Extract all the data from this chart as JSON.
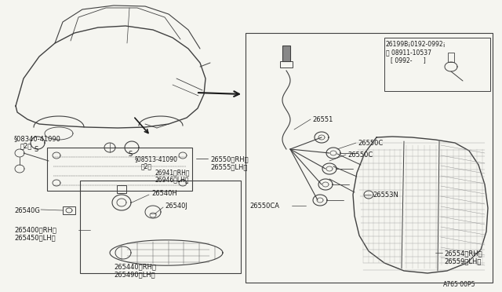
{
  "bg_color": "#f5f5f0",
  "line_color": "#404040",
  "text_color": "#1a1a1a",
  "diagram_code": "A765·00P5",
  "top_right_notes": [
    "26199B¡0192-0992¡",
    "ⓝ 08911-10537",
    "[ 0992-      ]"
  ],
  "font_size": 6.0
}
